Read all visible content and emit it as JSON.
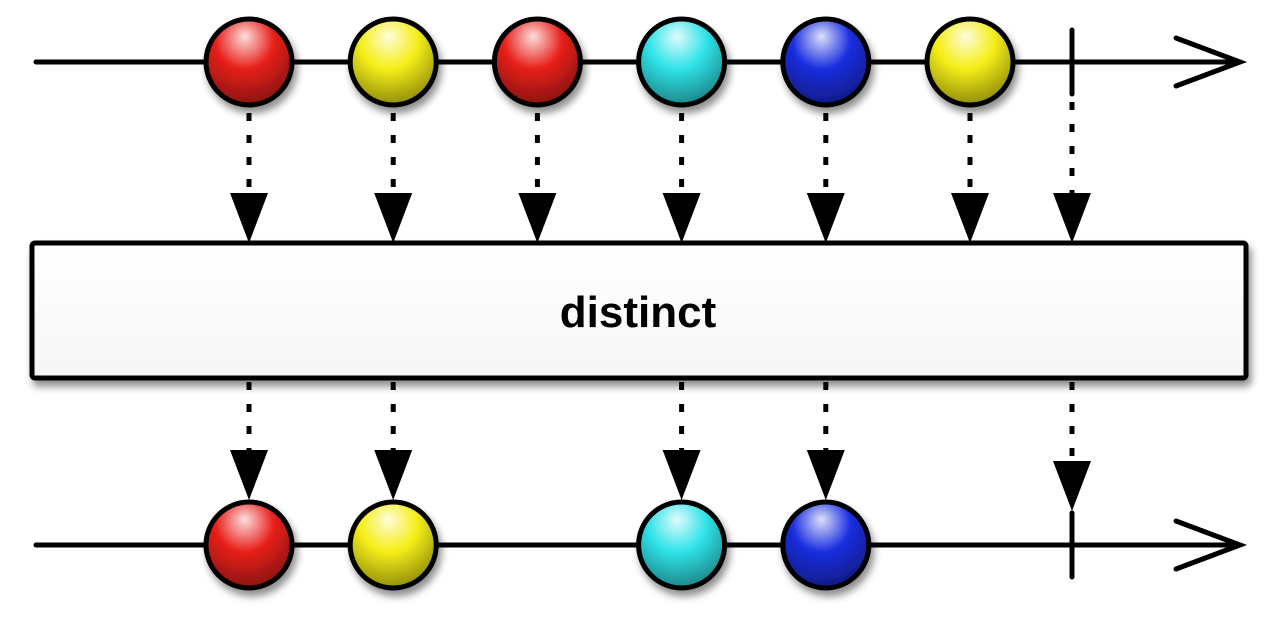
{
  "operator": {
    "label": "distinct"
  },
  "colors": {
    "red": "#e8201a",
    "yellow": "#f5ee16",
    "cyan": "#2fe3e8",
    "blue": "#1a2ee0"
  },
  "source_stream": {
    "items": [
      {
        "color": "red"
      },
      {
        "color": "yellow"
      },
      {
        "color": "red"
      },
      {
        "color": "cyan"
      },
      {
        "color": "blue"
      },
      {
        "color": "yellow"
      }
    ],
    "completes": true
  },
  "result_stream": {
    "items": [
      {
        "color": "red",
        "source_index": 0
      },
      {
        "color": "yellow",
        "source_index": 1
      },
      {
        "color": "cyan",
        "source_index": 3
      },
      {
        "color": "blue",
        "source_index": 4
      }
    ],
    "completes": true
  }
}
